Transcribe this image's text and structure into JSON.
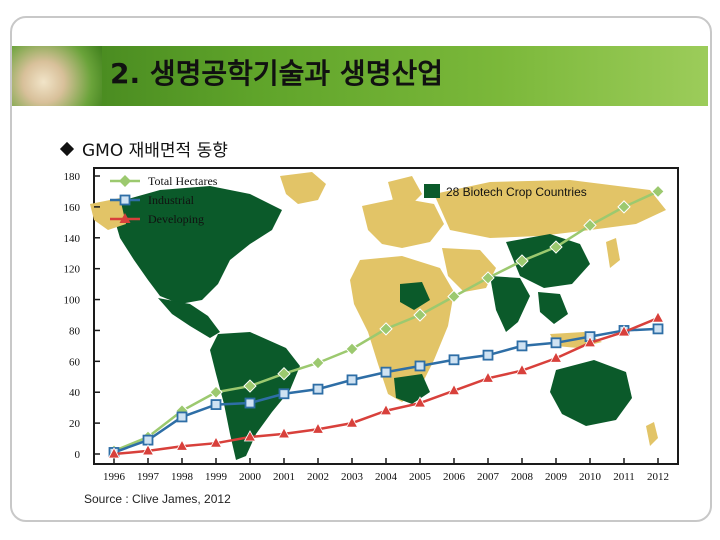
{
  "slide": {
    "title": "2. 생명공학기술과 생명산업",
    "bullet": "GMO 재배면적 동향",
    "source": "Source : Clive James, 2012"
  },
  "map_legend": {
    "label": "28 Biotech Crop Countries",
    "color": "#0b5a2a"
  },
  "colors": {
    "total": "#9cc96f",
    "industrial": "#2e6ea6",
    "developing": "#d8403b",
    "map_land": "#e2c467",
    "map_biotech": "#0b5a2a"
  },
  "chart_data": {
    "type": "line",
    "categories": [
      "1996",
      "1997",
      "1998",
      "1999",
      "2000",
      "2001",
      "2002",
      "2003",
      "2004",
      "2005",
      "2006",
      "2007",
      "2008",
      "2009",
      "2010",
      "2011",
      "2012"
    ],
    "series": [
      {
        "name": "Total Hectares",
        "values": [
          2,
          11,
          28,
          40,
          44,
          52,
          59,
          68,
          81,
          90,
          102,
          114,
          125,
          134,
          148,
          160,
          170
        ]
      },
      {
        "name": "Industrial",
        "values": [
          1,
          9,
          24,
          32,
          33,
          39,
          42,
          48,
          53,
          57,
          61,
          64,
          70,
          72,
          76,
          80,
          81
        ]
      },
      {
        "name": "Developing",
        "values": [
          0,
          2,
          5,
          7,
          11,
          13,
          16,
          20,
          28,
          33,
          41,
          49,
          54,
          62,
          72,
          79,
          88
        ]
      }
    ],
    "yticks": [
      0,
      20,
      40,
      60,
      80,
      100,
      120,
      140,
      160,
      180
    ],
    "ylim": [
      0,
      180
    ],
    "grid": false,
    "legend": "top-left"
  }
}
